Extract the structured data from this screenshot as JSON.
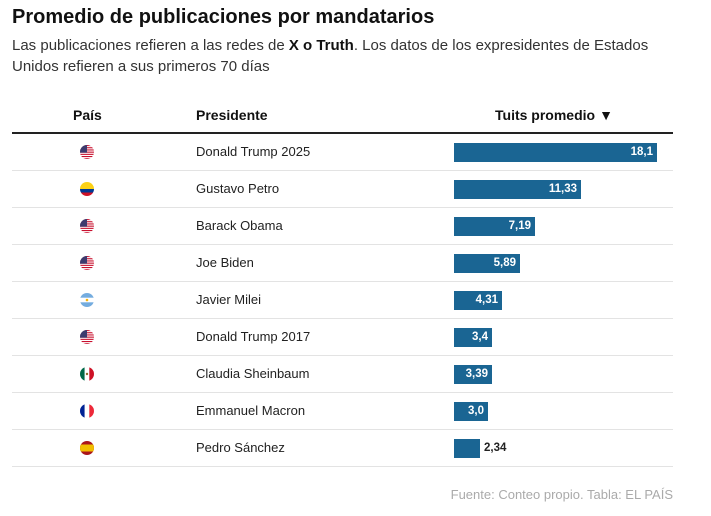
{
  "title": "Promedio de publicaciones por mandatarios",
  "subtitle": {
    "part1": "Las publicaciones refieren a las redes de ",
    "bold": "X o Truth",
    "part2": ". Los datos de los expresidentes de Estados Unidos refieren a sus primeros 70 días"
  },
  "columns": {
    "country": "País",
    "president": "Presidente",
    "value": "Tuits promedio",
    "sort_icon": "sort-descending-icon"
  },
  "colors": {
    "bar": "#1a6593"
  },
  "chart_data": {
    "type": "bar",
    "orientation": "horizontal",
    "categories": [
      "Donald Trump 2025",
      "Gustavo Petro",
      "Barack Obama",
      "Joe Biden",
      "Javier Milei",
      "Donald Trump 2017",
      "Claudia Sheinbaum",
      "Emmanuel Macron",
      "Pedro Sánchez"
    ],
    "values": [
      18.1,
      11.33,
      7.19,
      5.89,
      4.31,
      3.4,
      3.39,
      3.0,
      2.34
    ],
    "labels": [
      "18,1",
      "11,33",
      "7,19",
      "5,89",
      "4,31",
      "3,4",
      "3,39",
      "3,0",
      "2,34"
    ],
    "countries": [
      "us",
      "co",
      "us",
      "us",
      "ar",
      "us",
      "mx",
      "fr",
      "es"
    ],
    "xlim": [
      0,
      18.1
    ]
  },
  "source": "Fuente: Conteo propio. Tabla: EL PAÍS"
}
